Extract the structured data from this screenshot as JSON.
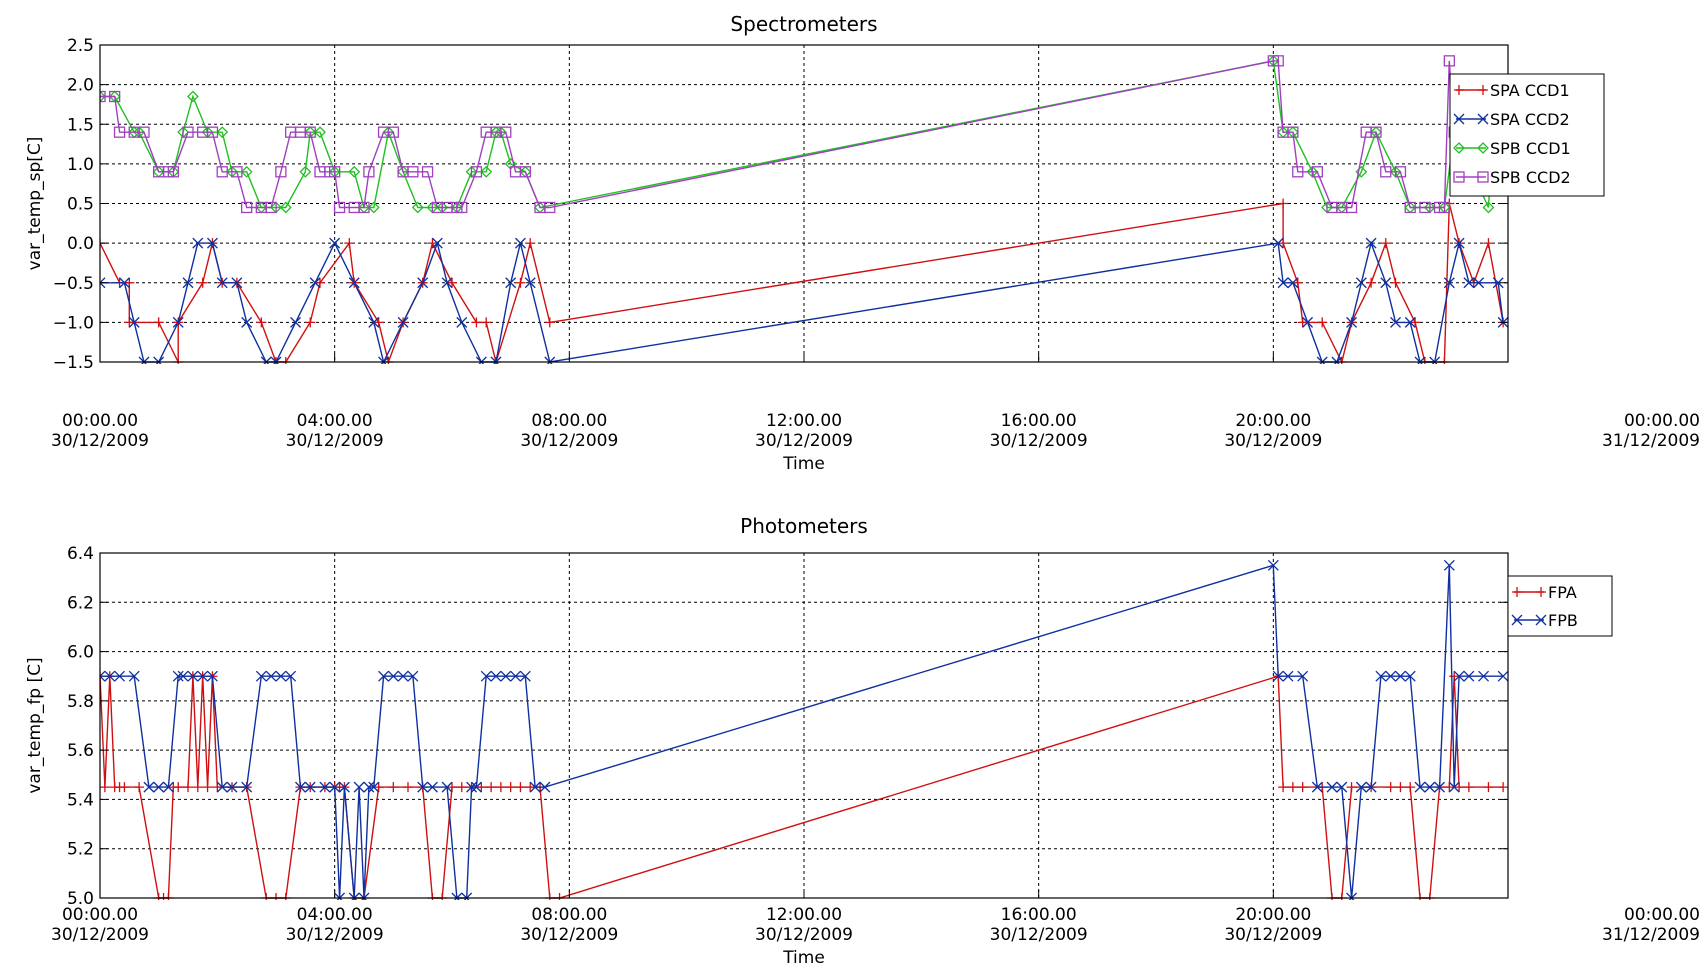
{
  "chart_data": [
    {
      "type": "line",
      "title": "Spectrometers",
      "xlabel": "Time",
      "ylabel": "var_temp_sp[C]",
      "xlim": [
        "30/12/2009 00:00",
        "31/12/2009 00:00"
      ],
      "ylim": [
        -1.5,
        2.5
      ],
      "xticks": [
        {
          "time": "00:00.00",
          "date": "30/12/2009"
        },
        {
          "time": "04:00.00",
          "date": "30/12/2009"
        },
        {
          "time": "08:00.00",
          "date": "30/12/2009"
        },
        {
          "time": "12:00.00",
          "date": "30/12/2009"
        },
        {
          "time": "16:00.00",
          "date": "30/12/2009"
        },
        {
          "time": "20:00.00",
          "date": "30/12/2009"
        },
        {
          "time": "00:00.00",
          "date": "31/12/2009"
        }
      ],
      "yticks": [
        "2.5",
        "2.0",
        "1.5",
        "1.0",
        "0.5",
        "0.0",
        "−0.5",
        "−1.0",
        "−1.5"
      ],
      "grid": true,
      "legend_position": "top-right",
      "series": [
        {
          "name": "SPA CCD1",
          "color": "#d01010",
          "marker": "plus",
          "x": [
            "00:00",
            "00:20",
            "00:30",
            "00:30",
            "01:00",
            "01:20",
            "01:20",
            "01:45",
            "01:55",
            "02:05",
            "02:20",
            "02:45",
            "03:00",
            "03:10",
            "03:35",
            "03:45",
            "04:15",
            "04:20",
            "04:45",
            "04:55",
            "05:10",
            "05:30",
            "05:40",
            "06:00",
            "06:25",
            "06:35",
            "06:45",
            "07:10",
            "07:20",
            "07:40",
            "20:10",
            "20:10",
            "20:25",
            "20:30",
            "20:50",
            "21:10",
            "21:20",
            "21:40",
            "21:55",
            "22:05",
            "22:25",
            "22:35",
            "22:55",
            "23:00",
            "23:10",
            "23:25",
            "23:40",
            "23:55"
          ],
          "y": [
            0.0,
            -0.5,
            -0.5,
            -1.0,
            -1.0,
            -1.5,
            -1.0,
            -0.5,
            0.0,
            -0.5,
            -0.5,
            -1.0,
            -1.5,
            -1.5,
            -1.0,
            -0.5,
            0.0,
            -0.5,
            -1.0,
            -1.5,
            -1.0,
            -0.5,
            0.0,
            -0.5,
            -1.0,
            -1.0,
            -1.5,
            -0.5,
            0.0,
            -1.0,
            0.5,
            0.0,
            -0.5,
            -1.0,
            -1.0,
            -1.5,
            -1.0,
            -0.5,
            0.0,
            -0.5,
            -1.0,
            -1.5,
            -1.5,
            0.5,
            0.0,
            -0.5,
            0.0,
            -1.0
          ]
        },
        {
          "name": "SPA CCD2",
          "color": "#1030a0",
          "marker": "x",
          "x": [
            "00:00",
            "00:25",
            "00:35",
            "00:45",
            "01:00",
            "01:20",
            "01:30",
            "01:40",
            "01:55",
            "02:05",
            "02:20",
            "02:30",
            "02:50",
            "03:00",
            "03:20",
            "03:40",
            "04:00",
            "04:20",
            "04:40",
            "04:50",
            "05:10",
            "05:30",
            "05:45",
            "05:55",
            "06:10",
            "06:30",
            "06:45",
            "07:00",
            "07:10",
            "07:20",
            "07:40",
            "20:05",
            "20:10",
            "20:20",
            "20:35",
            "20:50",
            "21:05",
            "21:20",
            "21:30",
            "21:40",
            "21:55",
            "22:05",
            "22:20",
            "22:30",
            "22:45",
            "23:00",
            "23:10",
            "23:20",
            "23:30",
            "23:50",
            "23:55"
          ],
          "y": [
            -0.5,
            -0.5,
            -1.0,
            -1.5,
            -1.5,
            -1.0,
            -0.5,
            0.0,
            0.0,
            -0.5,
            -0.5,
            -1.0,
            -1.5,
            -1.5,
            -1.0,
            -0.5,
            0.0,
            -0.5,
            -1.0,
            -1.5,
            -1.0,
            -0.5,
            0.0,
            -0.5,
            -1.0,
            -1.5,
            -1.5,
            -0.5,
            0.0,
            -0.5,
            -1.5,
            0.0,
            -0.5,
            -0.5,
            -1.0,
            -1.5,
            -1.5,
            -1.0,
            -0.5,
            0.0,
            -0.5,
            -1.0,
            -1.0,
            -1.5,
            -1.5,
            -0.5,
            0.0,
            -0.5,
            -0.5,
            -0.5,
            -1.0
          ]
        },
        {
          "name": "SPB CCD1",
          "color": "#20c020",
          "marker": "diamond",
          "x": [
            "00:00",
            "00:15",
            "00:35",
            "00:40",
            "01:00",
            "01:15",
            "01:25",
            "01:35",
            "01:50",
            "02:05",
            "02:15",
            "02:30",
            "02:45",
            "03:00",
            "03:10",
            "03:30",
            "03:35",
            "03:45",
            "04:00",
            "04:20",
            "04:30",
            "04:40",
            "04:55",
            "05:10",
            "05:25",
            "05:40",
            "05:50",
            "06:05",
            "06:20",
            "06:35",
            "06:45",
            "06:50",
            "07:00",
            "07:15",
            "07:30",
            "20:00",
            "20:10",
            "20:20",
            "20:40",
            "20:55",
            "21:10",
            "21:30",
            "21:45",
            "22:05",
            "22:20",
            "22:40",
            "22:55",
            "23:05",
            "23:20",
            "23:40",
            "23:45",
            "23:55"
          ],
          "y": [
            1.85,
            1.85,
            1.4,
            1.4,
            0.9,
            0.9,
            1.4,
            1.85,
            1.4,
            1.4,
            0.9,
            0.9,
            0.45,
            0.45,
            0.45,
            0.9,
            1.4,
            1.4,
            0.9,
            0.9,
            0.45,
            0.45,
            1.4,
            0.9,
            0.45,
            0.45,
            0.45,
            0.45,
            0.9,
            0.9,
            1.4,
            1.4,
            1.0,
            0.9,
            0.45,
            2.3,
            1.4,
            1.4,
            0.9,
            0.45,
            0.45,
            0.9,
            1.4,
            0.9,
            0.45,
            0.45,
            0.45,
            1.4,
            1.0,
            0.45,
            1.4,
            0.9
          ]
        },
        {
          "name": "SPB CCD2",
          "color": "#a040c0",
          "marker": "square",
          "x": [
            "00:00",
            "00:15",
            "00:20",
            "00:35",
            "00:45",
            "01:00",
            "01:10",
            "01:15",
            "01:30",
            "01:45",
            "01:55",
            "02:05",
            "02:20",
            "02:30",
            "02:45",
            "02:55",
            "03:05",
            "03:15",
            "03:25",
            "03:35",
            "03:45",
            "03:55",
            "04:00",
            "04:05",
            "04:20",
            "04:30",
            "04:35",
            "04:50",
            "05:00",
            "05:10",
            "05:20",
            "05:35",
            "05:45",
            "05:55",
            "06:05",
            "06:10",
            "06:25",
            "06:35",
            "06:45",
            "06:55",
            "07:05",
            "07:15",
            "07:30",
            "07:40",
            "20:00",
            "20:05",
            "20:10",
            "20:20",
            "20:25",
            "20:45",
            "21:00",
            "21:10",
            "21:20",
            "21:35",
            "21:45",
            "21:55",
            "22:10",
            "22:20",
            "22:35",
            "22:50",
            "22:55",
            "23:00",
            "23:05",
            "23:10",
            "23:20",
            "23:30",
            "23:35",
            "23:40",
            "23:50",
            "23:55"
          ],
          "y": [
            1.85,
            1.85,
            1.4,
            1.4,
            1.4,
            0.9,
            0.9,
            0.9,
            1.4,
            1.4,
            1.4,
            0.9,
            0.9,
            0.45,
            0.45,
            0.45,
            0.9,
            1.4,
            1.4,
            1.4,
            0.9,
            0.9,
            0.9,
            0.45,
            0.45,
            0.45,
            0.9,
            1.4,
            1.4,
            0.9,
            0.9,
            0.9,
            0.45,
            0.45,
            0.45,
            0.45,
            0.9,
            1.4,
            1.4,
            1.4,
            0.9,
            0.9,
            0.45,
            0.45,
            2.3,
            2.3,
            1.4,
            1.4,
            0.9,
            0.9,
            0.45,
            0.45,
            0.45,
            1.4,
            1.4,
            0.9,
            0.9,
            0.45,
            0.45,
            0.45,
            0.45,
            2.3,
            1.4,
            1.4,
            0.9,
            0.9,
            1.4,
            1.4,
            0.9,
            0.9
          ]
        }
      ]
    },
    {
      "type": "line",
      "title": "Photometers",
      "xlabel": "Time",
      "ylabel": "var_temp_fp [C]",
      "xlim": [
        "30/12/2009 00:00",
        "31/12/2009 00:00"
      ],
      "ylim": [
        5.0,
        6.4
      ],
      "xticks": [
        {
          "time": "00:00.00",
          "date": "30/12/2009"
        },
        {
          "time": "04:00.00",
          "date": "30/12/2009"
        },
        {
          "time": "08:00.00",
          "date": "30/12/2009"
        },
        {
          "time": "12:00.00",
          "date": "30/12/2009"
        },
        {
          "time": "16:00.00",
          "date": "30/12/2009"
        },
        {
          "time": "20:00.00",
          "date": "30/12/2009"
        },
        {
          "time": "00:00.00",
          "date": "31/12/2009"
        }
      ],
      "yticks": [
        "6.4",
        "6.2",
        "6.0",
        "5.8",
        "5.6",
        "5.4",
        "5.2",
        "5.0"
      ],
      "grid": true,
      "legend_position": "top-right",
      "series": [
        {
          "name": "FPA",
          "color": "#d01010",
          "marker": "plus",
          "x": [
            "00:00",
            "00:05",
            "00:10",
            "00:15",
            "00:20",
            "00:25",
            "00:40",
            "01:00",
            "01:05",
            "01:10",
            "01:15",
            "01:20",
            "01:30",
            "01:35",
            "01:40",
            "01:45",
            "01:50",
            "01:55",
            "02:00",
            "02:15",
            "02:30",
            "02:50",
            "03:00",
            "03:10",
            "03:25",
            "03:35",
            "03:50",
            "04:00",
            "04:05",
            "04:10",
            "04:20",
            "04:30",
            "04:45",
            "05:00",
            "05:15",
            "05:30",
            "05:40",
            "05:50",
            "06:00",
            "06:10",
            "06:20",
            "06:30",
            "06:40",
            "06:50",
            "07:00",
            "07:10",
            "07:20",
            "07:30",
            "07:40",
            "07:50",
            "20:05",
            "20:10",
            "20:20",
            "20:30",
            "20:50",
            "21:00",
            "21:10",
            "21:20",
            "21:40",
            "22:00",
            "22:10",
            "22:20",
            "22:30",
            "22:40",
            "22:50",
            "23:00",
            "23:05",
            "23:10",
            "23:20",
            "23:40",
            "23:55"
          ],
          "y": [
            5.9,
            5.45,
            5.9,
            5.45,
            5.45,
            5.45,
            5.45,
            5.0,
            5.0,
            5.0,
            5.45,
            5.45,
            5.45,
            5.9,
            5.45,
            5.9,
            5.45,
            5.9,
            5.45,
            5.45,
            5.45,
            5.0,
            5.0,
            5.0,
            5.45,
            5.45,
            5.45,
            5.45,
            5.45,
            5.45,
            5.0,
            5.0,
            5.45,
            5.45,
            5.45,
            5.45,
            5.0,
            5.0,
            5.45,
            5.45,
            5.45,
            5.45,
            5.45,
            5.45,
            5.45,
            5.45,
            5.45,
            5.45,
            5.0,
            5.0,
            5.9,
            5.45,
            5.45,
            5.45,
            5.45,
            5.0,
            5.0,
            5.45,
            5.45,
            5.45,
            5.45,
            5.45,
            5.0,
            5.0,
            5.45,
            5.45,
            5.9,
            5.45,
            5.45,
            5.45,
            5.45
          ]
        },
        {
          "name": "FPB",
          "color": "#1030a0",
          "marker": "x",
          "x": [
            "00:00",
            "00:10",
            "00:20",
            "00:35",
            "00:50",
            "01:00",
            "01:10",
            "01:20",
            "01:25",
            "01:35",
            "01:45",
            "01:55",
            "02:05",
            "02:15",
            "02:30",
            "02:45",
            "02:55",
            "03:05",
            "03:15",
            "03:25",
            "03:35",
            "03:50",
            "04:00",
            "04:05",
            "04:10",
            "04:20",
            "04:25",
            "04:30",
            "04:35",
            "04:40",
            "04:50",
            "05:00",
            "05:10",
            "05:20",
            "05:30",
            "05:40",
            "05:55",
            "06:05",
            "06:15",
            "06:20",
            "06:25",
            "06:35",
            "06:45",
            "06:55",
            "07:05",
            "07:15",
            "07:25",
            "07:35",
            "20:00",
            "20:05",
            "20:15",
            "20:30",
            "20:45",
            "21:00",
            "21:10",
            "21:20",
            "21:30",
            "21:40",
            "21:50",
            "22:00",
            "22:10",
            "22:20",
            "22:30",
            "22:40",
            "22:50",
            "23:00",
            "23:05",
            "23:10",
            "23:20",
            "23:35",
            "23:55"
          ],
          "y": [
            5.9,
            5.9,
            5.9,
            5.9,
            5.45,
            5.45,
            5.45,
            5.9,
            5.9,
            5.9,
            5.9,
            5.9,
            5.45,
            5.45,
            5.45,
            5.9,
            5.9,
            5.9,
            5.9,
            5.45,
            5.45,
            5.45,
            5.45,
            5.0,
            5.45,
            5.0,
            5.45,
            5.0,
            5.45,
            5.45,
            5.9,
            5.9,
            5.9,
            5.9,
            5.45,
            5.45,
            5.45,
            5.0,
            5.0,
            5.45,
            5.45,
            5.9,
            5.9,
            5.9,
            5.9,
            5.9,
            5.45,
            5.45,
            6.35,
            5.9,
            5.9,
            5.9,
            5.45,
            5.45,
            5.45,
            5.0,
            5.45,
            5.45,
            5.9,
            5.9,
            5.9,
            5.9,
            5.45,
            5.45,
            5.45,
            6.35,
            5.45,
            5.9,
            5.9,
            5.9,
            5.9
          ]
        }
      ]
    }
  ]
}
